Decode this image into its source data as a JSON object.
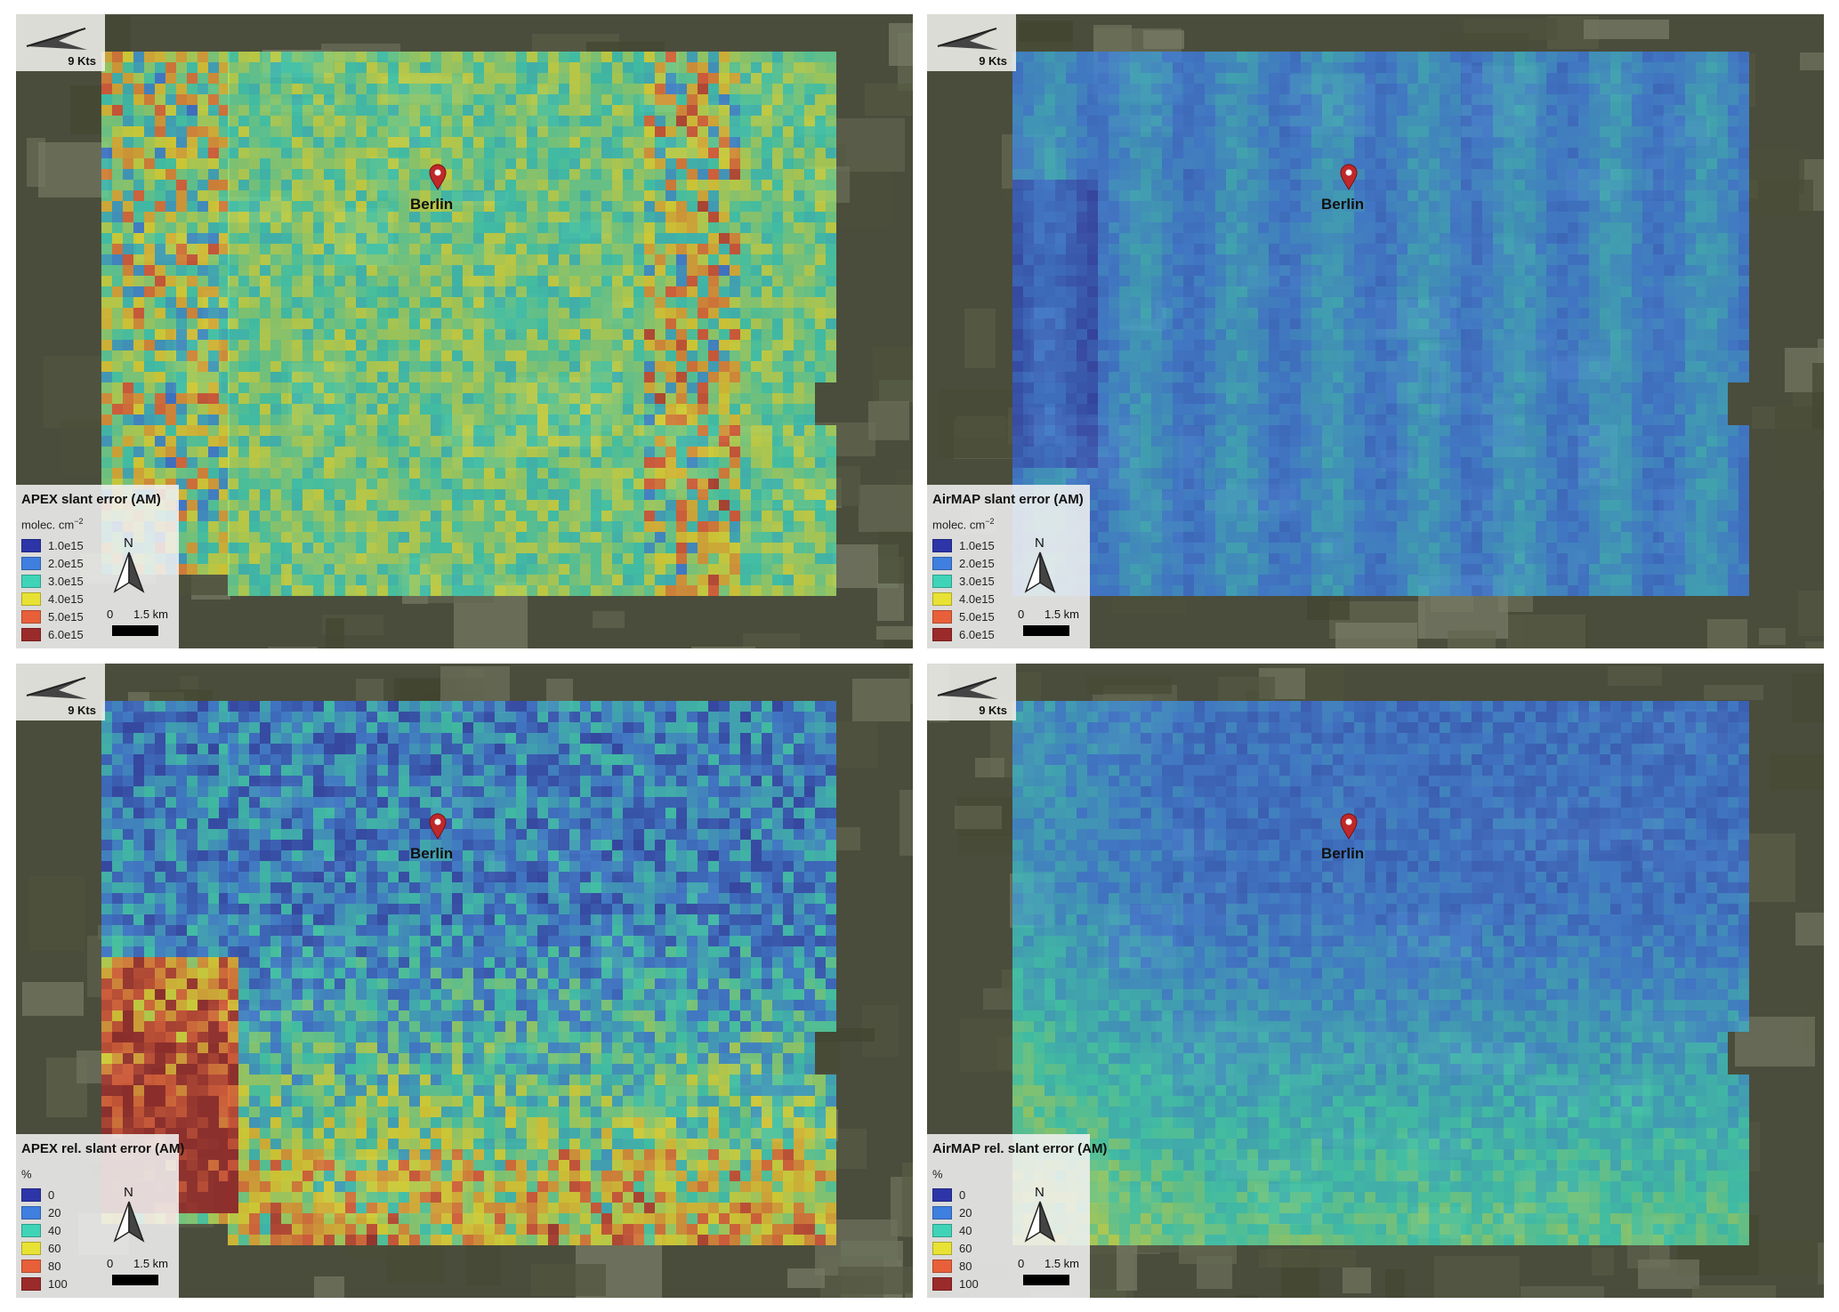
{
  "figure": {
    "panels": [
      {
        "id": "apex-abs",
        "legend_title": "APEX slant error (AM)",
        "legend_unit": "molec. cm",
        "legend_unit_exp": "−2",
        "legend_items": [
          {
            "label": "1.0e15",
            "color": "#2d35a8"
          },
          {
            "label": "2.0e15",
            "color": "#3f7fe0"
          },
          {
            "label": "3.0e15",
            "color": "#3fd4b8"
          },
          {
            "label": "4.0e15",
            "color": "#e8e235"
          },
          {
            "label": "5.0e15",
            "color": "#e8603a"
          },
          {
            "label": "6.0e15",
            "color": "#9b2a2a"
          }
        ],
        "wind_label": "9 Kts",
        "city_label": "Berlin",
        "north_label": "N",
        "scale_start": "0",
        "scale_end": "1.5 km",
        "field_pattern": "apex-abs"
      },
      {
        "id": "airmap-abs",
        "legend_title": "AirMAP slant error (AM)",
        "legend_unit": "molec. cm",
        "legend_unit_exp": "−2",
        "legend_items": [
          {
            "label": "1.0e15",
            "color": "#2d35a8"
          },
          {
            "label": "2.0e15",
            "color": "#3f7fe0"
          },
          {
            "label": "3.0e15",
            "color": "#3fd4b8"
          },
          {
            "label": "4.0e15",
            "color": "#e8e235"
          },
          {
            "label": "5.0e15",
            "color": "#e8603a"
          },
          {
            "label": "6.0e15",
            "color": "#9b2a2a"
          }
        ],
        "wind_label": "9 Kts",
        "city_label": "Berlin",
        "north_label": "N",
        "scale_start": "0",
        "scale_end": "1.5 km",
        "field_pattern": "airmap-abs"
      },
      {
        "id": "apex-rel",
        "legend_title": "APEX rel. slant error (AM)",
        "legend_unit": "%",
        "legend_unit_exp": "",
        "legend_items": [
          {
            "label": "0",
            "color": "#2d35a8"
          },
          {
            "label": "20",
            "color": "#3f7fe0"
          },
          {
            "label": "40",
            "color": "#3fd4b8"
          },
          {
            "label": "60",
            "color": "#e8e235"
          },
          {
            "label": "80",
            "color": "#e8603a"
          },
          {
            "label": "100",
            "color": "#9b2a2a"
          }
        ],
        "wind_label": "9 Kts",
        "city_label": "Berlin",
        "north_label": "N",
        "scale_start": "0",
        "scale_end": "1.5 km",
        "field_pattern": "apex-rel"
      },
      {
        "id": "airmap-rel",
        "legend_title": "AirMAP rel. slant error (AM)",
        "legend_unit": "%",
        "legend_unit_exp": "",
        "legend_items": [
          {
            "label": "0",
            "color": "#2d35a8"
          },
          {
            "label": "20",
            "color": "#3f7fe0"
          },
          {
            "label": "40",
            "color": "#3fd4b8"
          },
          {
            "label": "60",
            "color": "#e8e235"
          },
          {
            "label": "80",
            "color": "#e8603a"
          },
          {
            "label": "100",
            "color": "#9b2a2a"
          }
        ],
        "wind_label": "9 Kts",
        "city_label": "Berlin",
        "north_label": "N",
        "scale_start": "0",
        "scale_end": "1.5 km",
        "field_pattern": "airmap-rel"
      }
    ]
  }
}
